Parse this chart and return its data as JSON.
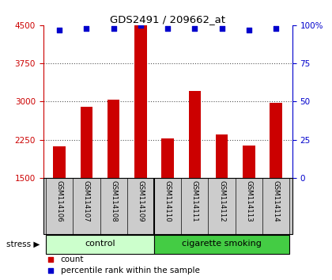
{
  "title": "GDS2491 / 209662_at",
  "samples": [
    "GSM114106",
    "GSM114107",
    "GSM114108",
    "GSM114109",
    "GSM114110",
    "GSM114111",
    "GSM114112",
    "GSM114113",
    "GSM114114"
  ],
  "counts": [
    2120,
    2900,
    3040,
    4500,
    2280,
    3200,
    2350,
    2130,
    2980
  ],
  "percentiles": [
    97,
    98,
    98,
    100,
    98,
    98,
    98,
    97,
    98
  ],
  "n_control": 4,
  "bar_color": "#cc0000",
  "dot_color": "#0000cc",
  "ylim_left": [
    1500,
    4500
  ],
  "ylim_right": [
    0,
    100
  ],
  "yticks_left": [
    1500,
    2250,
    3000,
    3750,
    4500
  ],
  "yticks_right": [
    0,
    25,
    50,
    75,
    100
  ],
  "left_axis_color": "#cc0000",
  "right_axis_color": "#0000cc",
  "grid_color": "#555555",
  "bg_color": "#ffffff",
  "label_area_color": "#cccccc",
  "control_color": "#ccffcc",
  "smoking_color": "#44cc44",
  "stress_label": "stress",
  "control_label": "control",
  "smoking_label": "cigarette smoking",
  "bar_width": 0.45
}
